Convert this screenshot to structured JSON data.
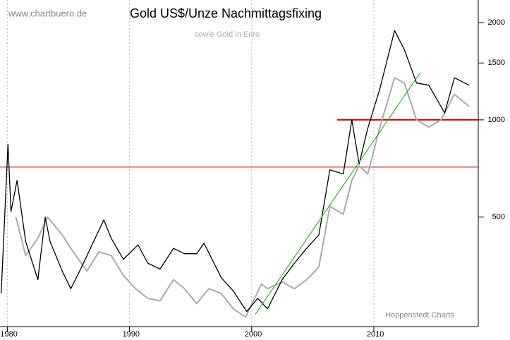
{
  "chart_data": {
    "type": "line",
    "title": "Gold US$/Unze Nachmittagsfixing",
    "subtitle": "sowie Gold in Euro",
    "watermark": "www.chartbuero.de",
    "source": "Hoppenstedt Charts",
    "log_y": true,
    "grid_x": true,
    "xlim": [
      1979.4,
      2018.55
    ],
    "xticks": [
      1980,
      1990,
      2000,
      2010
    ],
    "ylim": [
      229,
      2350
    ],
    "yticks": [
      500,
      1000,
      1500,
      2000
    ],
    "series": [
      {
        "name": "Gold US$",
        "color": "#000000",
        "x": [
          1979.5,
          1980.05,
          1980.3,
          1980.8,
          1981.5,
          1982.5,
          1983.1,
          1983.5,
          1984.5,
          1985.2,
          1986,
          1987.9,
          1988.5,
          1989.5,
          1990.7,
          1991.5,
          1992.5,
          1993.6,
          1994.5,
          1995.5,
          1996.1,
          1997.5,
          1998.5,
          1999.6,
          2000.5,
          2001.3,
          2002.5,
          2003.5,
          2004.5,
          2005.5,
          2006.4,
          2007.5,
          2008.2,
          2008.8,
          2009.5,
          2010.5,
          2011.7,
          2012.5,
          2013.5,
          2014.5,
          2015.8,
          2016.6,
          2017.8
        ],
        "values": [
          290,
          840,
          520,
          650,
          420,
          320,
          500,
          420,
          340,
          300,
          345,
          490,
          430,
          370,
          410,
          360,
          345,
          400,
          385,
          385,
          415,
          325,
          295,
          255,
          280,
          260,
          320,
          360,
          400,
          440,
          700,
          680,
          1000,
          730,
          940,
          1250,
          1890,
          1650,
          1300,
          1280,
          1050,
          1350,
          1280
        ]
      },
      {
        "name": "Gold Euro",
        "color": "#aaaaaa",
        "x": [
          1980.7,
          1981.5,
          1982.5,
          1983.3,
          1984.5,
          1985.2,
          1986.5,
          1987.5,
          1988.5,
          1989.5,
          1990.5,
          1991.5,
          1992.5,
          1993.6,
          1994.5,
          1995.5,
          1996.5,
          1997.5,
          1998.5,
          1999.5,
          2000.8,
          2001.3,
          2002.5,
          2003.5,
          2004.5,
          2005.5,
          2006.4,
          2007.5,
          2008.2,
          2008.8,
          2009.5,
          2010.5,
          2011.7,
          2012.5,
          2013.5,
          2014.5,
          2015.5,
          2016.6,
          2017.8
        ],
        "values": [
          500,
          380,
          430,
          500,
          440,
          400,
          340,
          390,
          380,
          330,
          300,
          280,
          275,
          320,
          300,
          270,
          300,
          290,
          260,
          245,
          310,
          300,
          315,
          300,
          320,
          350,
          540,
          510,
          650,
          720,
          680,
          950,
          1350,
          1300,
          1000,
          950,
          1000,
          1200,
          1100
        ]
      }
    ],
    "hlines": [
      {
        "value": 1000,
        "from": 2007.0,
        "color": "#e00000",
        "width": 2
      },
      {
        "value": 714,
        "from": 1979.4,
        "color": "#e00000",
        "width": 1
      }
    ],
    "trendline": {
      "x": [
        2000.3,
        2013.8
      ],
      "values": [
        250,
        1400
      ],
      "color": "#00b000"
    }
  }
}
